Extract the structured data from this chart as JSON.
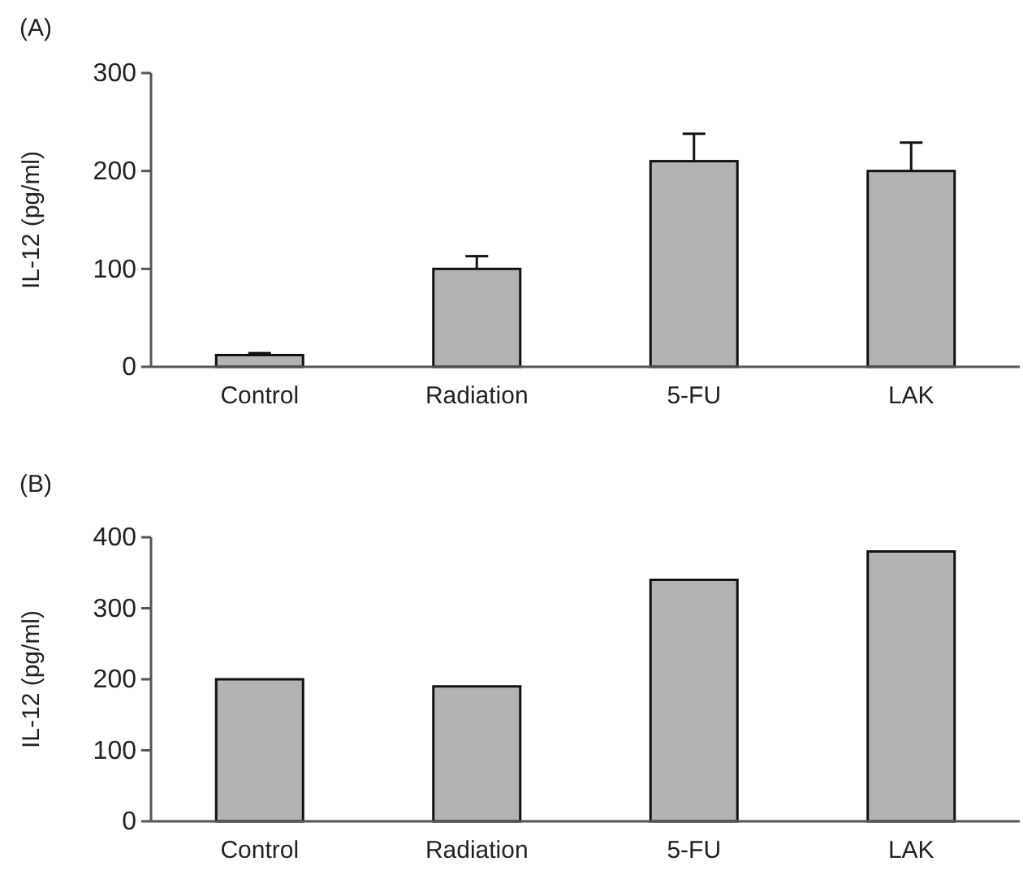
{
  "chart_data": [
    {
      "type": "bar",
      "title": "(A)",
      "ylabel": "IL-12 (pg/ml)",
      "categories": [
        "Control",
        "Radiation",
        "5-FU",
        "LAK"
      ],
      "values": [
        12,
        100,
        210,
        200
      ],
      "errors": [
        [
          12,
          14
        ],
        [
          100,
          113
        ],
        [
          210,
          238
        ],
        [
          200,
          229
        ]
      ],
      "color": "#b3b3b3",
      "ylim": [
        0,
        300
      ],
      "yticks": [
        0,
        100,
        200,
        300
      ],
      "grid": false
    },
    {
      "type": "bar",
      "title": "(B)",
      "ylabel": "IL-12 (pg/ml)",
      "categories": [
        "Control",
        "Radiation",
        "5-FU",
        "LAK"
      ],
      "values": [
        200,
        190,
        340,
        380
      ],
      "color": "#b3b3b3",
      "ylim": [
        0,
        400
      ],
      "yticks": [
        0,
        100,
        200,
        300,
        400
      ],
      "grid": false
    }
  ]
}
